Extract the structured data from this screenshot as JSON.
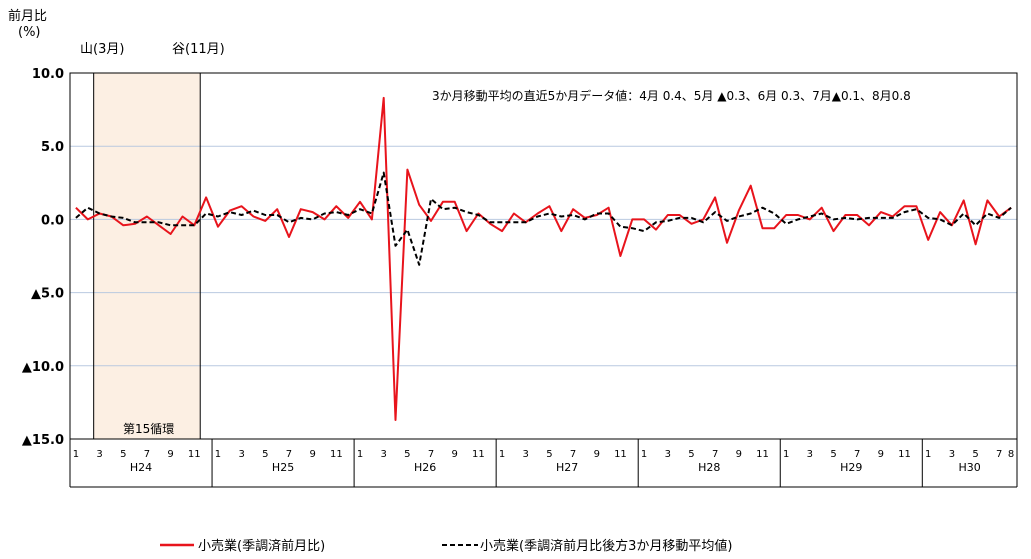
{
  "chart_data": {
    "type": "line",
    "y_axis_title": "前月比",
    "y_axis_unit": "(%)",
    "ylim": [
      -15,
      10
    ],
    "yticks": [
      10,
      5,
      0,
      -5,
      -10,
      -15
    ],
    "ytick_labels": [
      "10.0",
      "5.0",
      "0.0",
      "▲5.0",
      "▲10.0",
      "▲15.0"
    ],
    "grid": true,
    "peak_label": "山(3月)",
    "trough_label": "谷(11月)",
    "cycle_label": "第15循環",
    "shaded_range": [
      "H24-3",
      "H24-11"
    ],
    "annotation": "3か月移動平均の直近5か月データ値：4月 0.4、5月 ▲0.3、6月 0.3、7月▲0.1、8月0.8",
    "years": [
      {
        "label": "H24",
        "months": 12
      },
      {
        "label": "H25",
        "months": 12
      },
      {
        "label": "H26",
        "months": 12
      },
      {
        "label": "H27",
        "months": 12
      },
      {
        "label": "H28",
        "months": 12
      },
      {
        "label": "H29",
        "months": 12
      },
      {
        "label": "H30",
        "months": 8
      }
    ],
    "month_tick_labels": [
      "1",
      "3",
      "5",
      "7",
      "9",
      "11"
    ],
    "last_month_label": "8",
    "legend_position": "bottom",
    "series": [
      {
        "name": "小売業(季調済前月比)",
        "color": "#e8141c",
        "style": "solid",
        "values": [
          0.8,
          0.0,
          0.4,
          0.2,
          -0.4,
          -0.3,
          0.2,
          -0.4,
          -1.0,
          0.2,
          -0.4,
          1.5,
          -0.5,
          0.6,
          0.9,
          0.2,
          -0.1,
          0.7,
          -1.2,
          0.7,
          0.5,
          0.0,
          0.9,
          0.1,
          1.2,
          0.0,
          8.3,
          -13.7,
          3.4,
          1.0,
          -0.1,
          1.2,
          1.2,
          -0.8,
          0.4,
          -0.3,
          -0.8,
          0.4,
          -0.2,
          0.4,
          0.9,
          -0.8,
          0.7,
          0.1,
          0.3,
          0.8,
          -2.5,
          0.0,
          0.0,
          -0.7,
          0.3,
          0.3,
          -0.3,
          0.0,
          1.5,
          -1.6,
          0.6,
          2.3,
          -0.6,
          -0.6,
          0.3,
          0.3,
          0.0,
          0.8,
          -0.8,
          0.3,
          0.3,
          -0.4,
          0.5,
          0.2,
          0.9,
          0.9,
          -1.4,
          0.5,
          -0.4,
          1.3,
          -1.7,
          1.3,
          0.2,
          0.8
        ]
      },
      {
        "name": "小売業(季調済前月比後方3か月移動平均値)",
        "color": "#000000",
        "style": "dashed",
        "values": [
          0.1,
          0.8,
          0.4,
          0.2,
          0.1,
          -0.2,
          -0.2,
          -0.2,
          -0.4,
          -0.4,
          -0.4,
          0.4,
          0.2,
          0.5,
          0.3,
          0.6,
          0.3,
          0.3,
          -0.2,
          0.1,
          0.0,
          0.4,
          0.5,
          0.3,
          0.7,
          0.4,
          3.2,
          -1.8,
          -0.7,
          -3.1,
          1.4,
          0.7,
          0.8,
          0.5,
          0.3,
          -0.2,
          -0.2,
          -0.2,
          -0.2,
          0.2,
          0.4,
          0.2,
          0.3,
          0.0,
          0.4,
          0.4,
          -0.5,
          -0.6,
          -0.8,
          -0.2,
          -0.1,
          0.1,
          0.1,
          -0.2,
          0.5,
          -0.1,
          0.2,
          0.4,
          0.8,
          0.4,
          -0.3,
          0.0,
          0.2,
          0.4,
          0.0,
          0.1,
          0.0,
          0.1,
          0.1,
          0.1,
          0.5,
          0.7,
          0.1,
          0.0,
          -0.4,
          0.4,
          -0.4,
          0.4,
          0.1,
          0.8
        ]
      }
    ]
  }
}
